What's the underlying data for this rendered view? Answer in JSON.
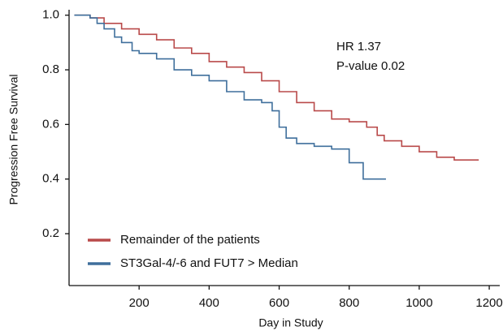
{
  "chart_data": {
    "type": "step",
    "xlabel": "Day in Study",
    "ylabel": "Progression Free Survival",
    "annotations": [
      "HR 1.37",
      "P-value 0.02"
    ],
    "xlim": [
      0,
      1230
    ],
    "ylim": [
      0.01,
      1.02
    ],
    "xticks": [
      200,
      400,
      600,
      800,
      1000,
      1200
    ],
    "yticks": [
      0.2,
      0.4,
      0.6,
      0.8,
      {
        "value": 1,
        "label": "1.0"
      }
    ],
    "grid": false,
    "legend": "lower left",
    "series": [
      {
        "name": "Remainder of the patients",
        "color": "#b94a4a",
        "x": [
          15,
          60,
          100,
          150,
          200,
          250,
          300,
          350,
          400,
          450,
          500,
          550,
          600,
          650,
          700,
          750,
          800,
          850,
          880,
          900,
          950,
          1000,
          1050,
          1100,
          1170
        ],
        "values": [
          1.0,
          0.99,
          0.97,
          0.95,
          0.93,
          0.91,
          0.88,
          0.86,
          0.83,
          0.81,
          0.79,
          0.76,
          0.72,
          0.68,
          0.65,
          0.62,
          0.61,
          0.59,
          0.56,
          0.54,
          0.52,
          0.5,
          0.48,
          0.47,
          0.47
        ]
      },
      {
        "name": "ST3Gal-4/-6 and FUT7 > Median",
        "color": "#3f6f9c",
        "x": [
          15,
          60,
          80,
          100,
          130,
          150,
          180,
          200,
          250,
          300,
          350,
          400,
          450,
          500,
          550,
          580,
          600,
          620,
          650,
          700,
          750,
          800,
          840,
          870,
          905
        ],
        "values": [
          1.0,
          0.99,
          0.97,
          0.95,
          0.92,
          0.9,
          0.87,
          0.86,
          0.84,
          0.8,
          0.78,
          0.76,
          0.72,
          0.69,
          0.68,
          0.65,
          0.59,
          0.55,
          0.53,
          0.52,
          0.51,
          0.46,
          0.4,
          0.4,
          0.4
        ]
      }
    ]
  }
}
